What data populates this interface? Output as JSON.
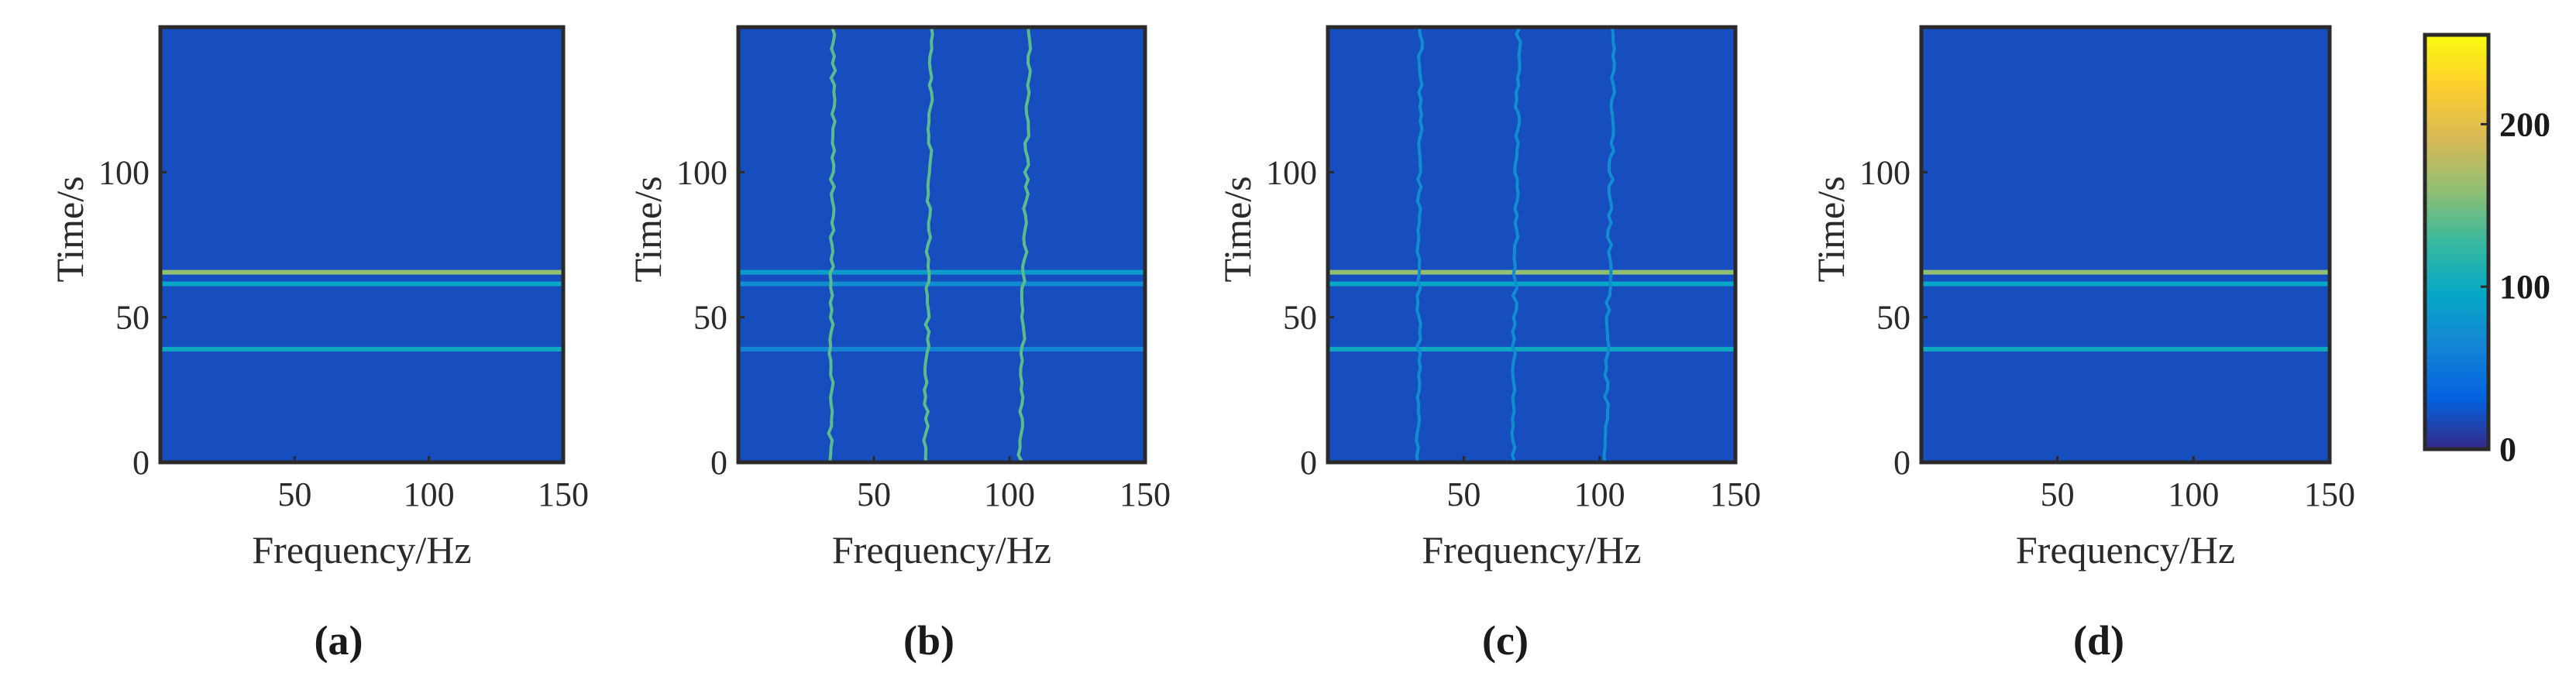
{
  "chart_data": [
    {
      "panel": "(a)",
      "type": "heatmap",
      "xlabel": "Frequency/Hz",
      "ylabel": "Time/s",
      "xlim": [
        0,
        150
      ],
      "ylim": [
        0,
        150
      ],
      "xticks": [
        "50",
        "100",
        "150"
      ],
      "xtick_values": [
        50,
        100,
        150
      ],
      "yticks": [
        "0",
        "50",
        "100"
      ],
      "ytick_values": [
        0,
        50,
        100
      ],
      "background_value": 20,
      "horizontal_lines": [
        {
          "time": 65.5,
          "value": 160
        },
        {
          "time": 61.5,
          "value": 95
        },
        {
          "time": 39,
          "value": 100
        }
      ],
      "vertical_tracks": []
    },
    {
      "panel": "(b)",
      "type": "heatmap",
      "xlabel": "Frequency/Hz",
      "ylabel": "Time/s",
      "xlim": [
        0,
        150
      ],
      "ylim": [
        0,
        150
      ],
      "xticks": [
        "50",
        "100",
        "150"
      ],
      "xtick_values": [
        50,
        100,
        150
      ],
      "yticks": [
        "0",
        "50",
        "100"
      ],
      "ytick_values": [
        0,
        50,
        100
      ],
      "background_value": 20,
      "horizontal_lines": [
        {
          "time": 65.5,
          "value": 85
        },
        {
          "time": 61.5,
          "value": 70
        },
        {
          "time": 39,
          "value": 65
        }
      ],
      "vertical_tracks": [
        {
          "frequency": 34,
          "value": 140
        },
        {
          "frequency": 69,
          "value": 140
        },
        {
          "frequency": 104,
          "value": 140
        }
      ]
    },
    {
      "panel": "(c)",
      "type": "heatmap",
      "xlabel": "Frequency/Hz",
      "ylabel": "Time/s",
      "xlim": [
        0,
        150
      ],
      "ylim": [
        0,
        150
      ],
      "xticks": [
        "50",
        "100",
        "150"
      ],
      "xtick_values": [
        50,
        100,
        150
      ],
      "yticks": [
        "0",
        "50",
        "100"
      ],
      "ytick_values": [
        0,
        50,
        100
      ],
      "background_value": 20,
      "horizontal_lines": [
        {
          "time": 65.5,
          "value": 160
        },
        {
          "time": 61.5,
          "value": 95
        },
        {
          "time": 39,
          "value": 100
        }
      ],
      "vertical_tracks": [
        {
          "frequency": 33,
          "value": 70
        },
        {
          "frequency": 68,
          "value": 70
        },
        {
          "frequency": 102,
          "value": 70
        }
      ]
    },
    {
      "panel": "(d)",
      "type": "heatmap",
      "xlabel": "Frequency/Hz",
      "ylabel": "Time/s",
      "xlim": [
        0,
        150
      ],
      "ylim": [
        0,
        150
      ],
      "xticks": [
        "50",
        "100",
        "150"
      ],
      "xtick_values": [
        50,
        100,
        150
      ],
      "yticks": [
        "0",
        "50",
        "100"
      ],
      "ytick_values": [
        0,
        50,
        100
      ],
      "background_value": 20,
      "horizontal_lines": [
        {
          "time": 65.5,
          "value": 160
        },
        {
          "time": 61.5,
          "value": 95
        },
        {
          "time": 39,
          "value": 100
        }
      ],
      "vertical_tracks": []
    }
  ],
  "colorbar": {
    "colormap": "parula",
    "range": [
      0,
      255
    ],
    "ticks": [
      "0",
      "100",
      "200"
    ],
    "tick_values": [
      0,
      100,
      200
    ]
  },
  "colors": {
    "background": "#352a87",
    "axes": "#2a2a2a"
  }
}
